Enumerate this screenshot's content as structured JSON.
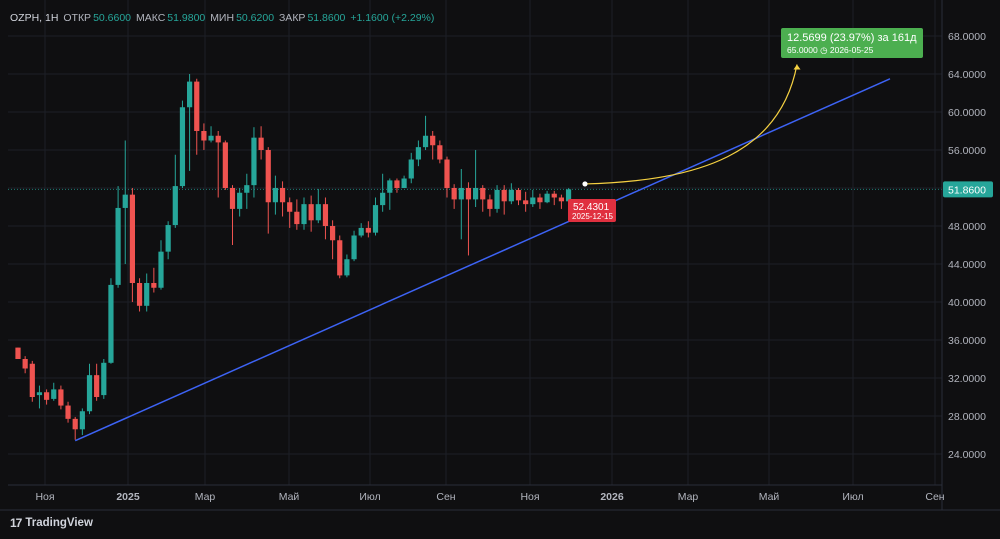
{
  "header": {
    "symbol": "OZPH, 1Н",
    "open_label": "ОТКР",
    "open": "50.6600",
    "high_label": "МАКС",
    "high": "51.9800",
    "low_label": "МИН",
    "low": "50.6200",
    "close_label": "ЗАКР",
    "close": "51.8600",
    "change": "+1.1600 (+2.29%)"
  },
  "logo": {
    "text": "TradingView",
    "icon": "tradingview-logo-icon"
  },
  "colors": {
    "up": "#26a69a",
    "down": "#ef5350",
    "trend": "#3d63f5",
    "forecast": "#f5d142",
    "target": "#4caf50",
    "marker": "#e0303f"
  },
  "chart_data": {
    "type": "candlestick",
    "y_axis": {
      "min": 22,
      "max": 70,
      "ticks": [
        "24.0000",
        "28.0000",
        "32.0000",
        "36.0000",
        "40.0000",
        "44.0000",
        "48.0000",
        "52.0000",
        "56.0000",
        "60.0000",
        "64.0000",
        "68.0000"
      ],
      "position": "right"
    },
    "x_axis": {
      "labels": [
        "Ноя",
        "2025",
        "Мар",
        "Май",
        "Июл",
        "Сен",
        "Ноя",
        "2026",
        "Мар",
        "Май",
        "Июл",
        "Сен"
      ]
    },
    "last_price": "51.8600",
    "candles": [
      [
        35.2,
        34.0,
        35.2,
        34.0
      ],
      [
        34.0,
        33.0,
        34.3,
        32.5
      ],
      [
        33.5,
        30.0,
        33.8,
        29.5
      ],
      [
        30.2,
        30.5,
        31.2,
        28.8
      ],
      [
        30.5,
        29.7,
        30.8,
        29.2
      ],
      [
        29.8,
        30.8,
        31.5,
        29.6
      ],
      [
        30.8,
        29.1,
        31.2,
        28.7
      ],
      [
        29.1,
        27.7,
        29.5,
        27.3
      ],
      [
        27.7,
        26.6,
        27.9,
        25.5
      ],
      [
        26.6,
        28.5,
        28.8,
        26.0
      ],
      [
        28.5,
        32.3,
        33.5,
        28.2
      ],
      [
        32.3,
        30.0,
        33.5,
        29.6
      ],
      [
        30.2,
        33.6,
        34.0,
        29.8
      ],
      [
        33.6,
        41.8,
        42.5,
        33.5
      ],
      [
        41.8,
        49.9,
        52.2,
        41.5
      ],
      [
        49.9,
        51.3,
        57.0,
        44.0
      ],
      [
        51.3,
        42.0,
        52.0,
        40.0
      ],
      [
        42.0,
        39.6,
        42.5,
        39.0
      ],
      [
        39.6,
        42.0,
        43.0,
        39.0
      ],
      [
        42.0,
        41.5,
        43.6,
        41.0
      ],
      [
        41.5,
        45.3,
        46.5,
        41.3
      ],
      [
        45.3,
        48.1,
        48.5,
        44.5
      ],
      [
        48.1,
        52.2,
        55.5,
        47.8
      ],
      [
        52.2,
        60.5,
        61.2,
        52.0
      ],
      [
        60.5,
        63.2,
        64.0,
        53.8
      ],
      [
        63.2,
        58.0,
        63.5,
        55.5
      ],
      [
        58.0,
        57.0,
        58.8,
        56.0
      ],
      [
        57.0,
        57.5,
        58.5,
        56.8
      ],
      [
        57.5,
        56.8,
        58.0,
        51.0
      ],
      [
        56.8,
        52.0,
        57.0,
        51.8
      ],
      [
        52.0,
        49.8,
        52.3,
        46.0
      ],
      [
        49.8,
        51.5,
        52.0,
        49.0
      ],
      [
        51.5,
        52.3,
        53.5,
        49.8
      ],
      [
        52.3,
        57.3,
        58.4,
        51.0
      ],
      [
        57.3,
        56.0,
        58.5,
        55.0
      ],
      [
        56.0,
        50.5,
        56.3,
        47.2
      ],
      [
        50.5,
        52.0,
        53.3,
        49.2
      ],
      [
        52.0,
        50.5,
        52.7,
        49.0
      ],
      [
        50.5,
        49.5,
        51.0,
        47.8
      ],
      [
        49.5,
        48.2,
        50.8,
        47.6
      ],
      [
        48.2,
        50.3,
        51.0,
        47.6
      ],
      [
        50.3,
        48.6,
        51.2,
        47.4
      ],
      [
        48.6,
        50.3,
        51.9,
        48.3
      ],
      [
        50.3,
        48.0,
        51.0,
        46.6
      ],
      [
        48.0,
        46.5,
        48.6,
        44.5
      ],
      [
        46.5,
        42.8,
        47.0,
        42.5
      ],
      [
        42.8,
        44.5,
        45.0,
        42.6
      ],
      [
        44.5,
        47.0,
        47.5,
        44.3
      ],
      [
        47.0,
        47.8,
        48.3,
        46.8
      ],
      [
        47.8,
        47.3,
        48.5,
        46.8
      ],
      [
        47.3,
        50.2,
        51.0,
        47.0
      ],
      [
        50.2,
        51.5,
        53.5,
        49.5
      ],
      [
        51.5,
        52.8,
        53.0,
        49.7
      ],
      [
        52.8,
        52.0,
        53.0,
        51.5
      ],
      [
        52.0,
        53.0,
        53.3,
        52.0
      ],
      [
        53.0,
        55.0,
        55.7,
        52.5
      ],
      [
        55.0,
        56.3,
        57.0,
        54.3
      ],
      [
        56.3,
        57.5,
        59.6,
        56.0
      ],
      [
        57.5,
        56.5,
        58.0,
        55.0
      ],
      [
        56.5,
        55.0,
        57.0,
        54.6
      ],
      [
        55.0,
        52.0,
        55.3,
        51.0
      ],
      [
        52.0,
        50.8,
        52.4,
        49.8
      ],
      [
        50.8,
        52.0,
        54.0,
        46.6
      ],
      [
        52.0,
        50.8,
        52.6,
        44.9
      ],
      [
        50.8,
        52.0,
        56.0,
        50.0
      ],
      [
        52.0,
        50.8,
        52.3,
        49.5
      ],
      [
        50.8,
        49.8,
        51.3,
        49.0
      ],
      [
        49.8,
        51.8,
        52.3,
        49.4
      ],
      [
        51.8,
        50.6,
        52.3,
        49.2
      ],
      [
        50.6,
        51.8,
        52.5,
        50.3
      ],
      [
        51.8,
        50.7,
        52.0,
        50.2
      ],
      [
        50.7,
        50.3,
        51.6,
        49.5
      ],
      [
        50.3,
        51.0,
        51.8,
        50.0
      ],
      [
        51.0,
        50.5,
        51.4,
        49.8
      ],
      [
        50.5,
        51.4,
        51.7,
        50.4
      ],
      [
        51.4,
        51.0,
        51.7,
        50.2
      ],
      [
        51.0,
        50.6,
        51.3,
        49.8
      ],
      [
        50.6,
        51.86,
        51.98,
        50.62
      ]
    ],
    "trendline": [
      [
        0,
        25.4
      ],
      [
        110,
        63.5
      ]
    ],
    "forecast": {
      "start_label": "52.4301",
      "start_date": "2025-12-15",
      "target_value": "65.0000",
      "target_date": "2026-05-25",
      "change_label": "12.5699 (23.97%) за 161д"
    }
  }
}
